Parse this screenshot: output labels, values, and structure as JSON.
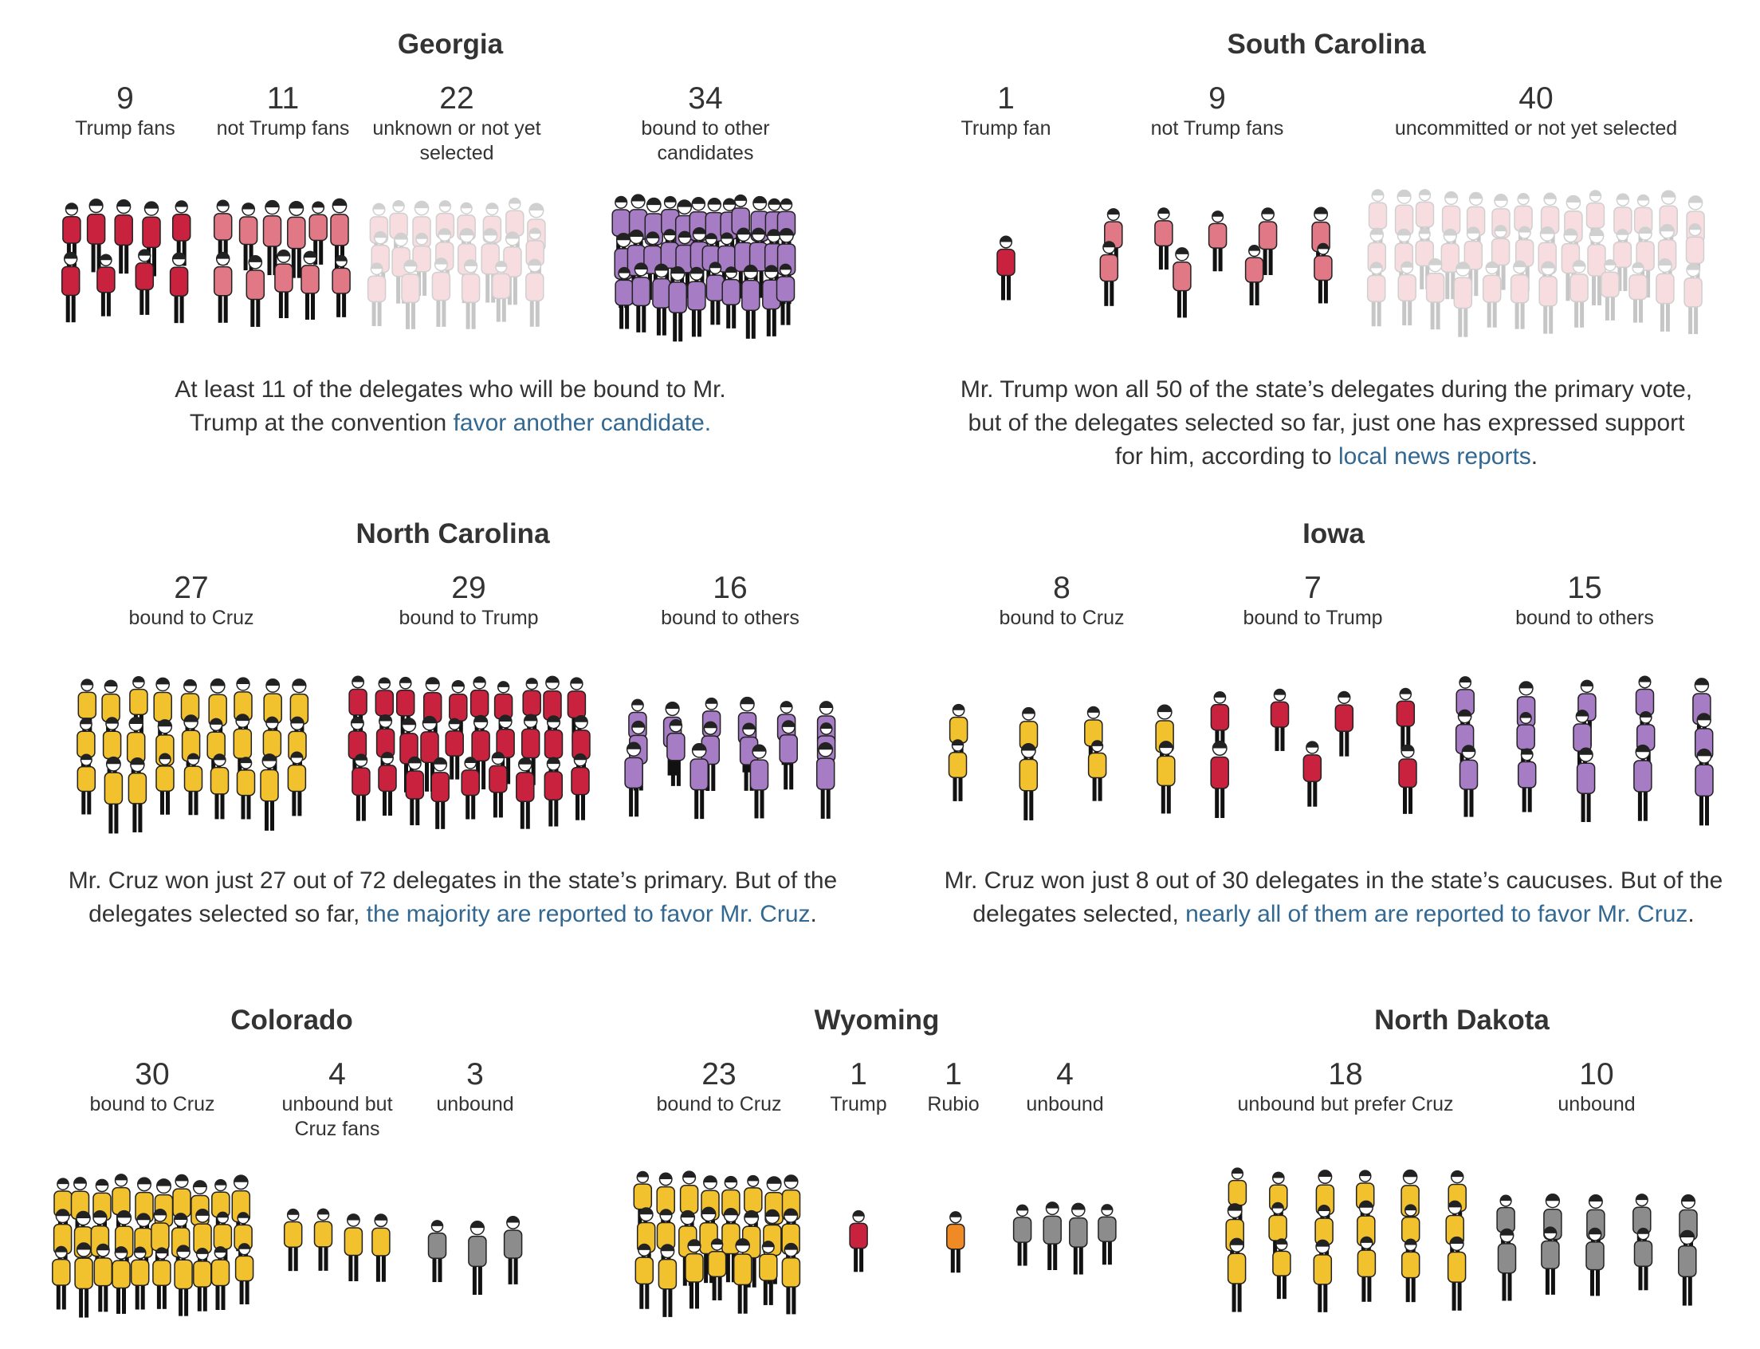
{
  "colors": {
    "trump_fan": "#c8223f",
    "not_trump": "#e07886",
    "unknown": "#f2c1c7",
    "other_candidate": "#a67cc4",
    "cruz": "#f2c12e",
    "trump": "#c8223f",
    "others": "#a67cc4",
    "unbound": "#8c8c8c",
    "rubio": "#f08a24",
    "link": "#326891"
  },
  "states": [
    {
      "id": "georgia",
      "title": "Georgia",
      "groups": [
        {
          "num": "9",
          "label": "Trump fans",
          "count": 9,
          "color": "trump_fan"
        },
        {
          "num": "11",
          "label": "not Trump fans",
          "count": 11,
          "color": "not_trump"
        },
        {
          "num": "22",
          "label": "unknown or not yet\nselected",
          "count": 22,
          "color": "unknown",
          "faded": true
        },
        {
          "num": "34",
          "label": "bound to other\ncandidates",
          "count": 34,
          "color": "other_candidate"
        }
      ],
      "note_before": "At least 11 of the delegates who will be bound to Mr. Trump at the convention ",
      "note_link": "favor another candidate.",
      "note_after": ""
    },
    {
      "id": "south_carolina",
      "title": "South Carolina",
      "groups": [
        {
          "num": "1",
          "label": "Trump fan",
          "count": 1,
          "color": "trump_fan"
        },
        {
          "num": "9",
          "label": "not Trump fans",
          "count": 9,
          "color": "not_trump"
        },
        {
          "num": "40",
          "label": "uncommitted or not yet selected",
          "count": 40,
          "color": "unknown",
          "faded": true
        }
      ],
      "note_before": "Mr. Trump won all 50 of the state’s delegates during the primary vote, but of the delegates selected so far, just one has expressed support for him, according to ",
      "note_link": "local news reports",
      "note_after": "."
    },
    {
      "id": "north_carolina",
      "title": "North Carolina",
      "groups": [
        {
          "num": "27",
          "label": "bound to Cruz",
          "count": 27,
          "color": "cruz"
        },
        {
          "num": "29",
          "label": "bound to Trump",
          "count": 29,
          "color": "trump"
        },
        {
          "num": "16",
          "label": "bound to others",
          "count": 16,
          "color": "others"
        }
      ],
      "note_before": "Mr. Cruz won just 27 out of 72 delegates in the state’s primary. But of the delegates selected so far, ",
      "note_link": "the majority are reported to favor Mr. Cruz",
      "note_after": "."
    },
    {
      "id": "iowa",
      "title": "Iowa",
      "groups": [
        {
          "num": "8",
          "label": "bound to Cruz",
          "count": 8,
          "color": "cruz"
        },
        {
          "num": "7",
          "label": "bound to Trump",
          "count": 7,
          "color": "trump"
        },
        {
          "num": "15",
          "label": "bound to others",
          "count": 15,
          "color": "others"
        }
      ],
      "note_before": "Mr. Cruz won just 8 out of 30 delegates in the state’s caucuses. But of the delegates selected, ",
      "note_link": "nearly all of them are reported to favor Mr. Cruz",
      "note_after": "."
    },
    {
      "id": "colorado",
      "title": "Colorado",
      "groups": [
        {
          "num": "30",
          "label": "bound to Cruz",
          "count": 30,
          "color": "cruz"
        },
        {
          "num": "4",
          "label": "unbound but\nCruz fans",
          "count": 4,
          "color": "cruz"
        },
        {
          "num": "3",
          "label": "unbound",
          "count": 3,
          "color": "unbound"
        }
      ]
    },
    {
      "id": "wyoming",
      "title": "Wyoming",
      "groups": [
        {
          "num": "23",
          "label": "bound to Cruz",
          "count": 23,
          "color": "cruz"
        },
        {
          "num": "1",
          "label": "Trump",
          "count": 1,
          "color": "trump"
        },
        {
          "num": "1",
          "label": "Rubio",
          "count": 1,
          "color": "rubio"
        },
        {
          "num": "4",
          "label": "unbound",
          "count": 4,
          "color": "unbound"
        }
      ]
    },
    {
      "id": "north_dakota",
      "title": "North Dakota",
      "groups": [
        {
          "num": "18",
          "label": "unbound but prefer Cruz",
          "count": 18,
          "color": "cruz"
        },
        {
          "num": "10",
          "label": "unbound",
          "count": 10,
          "color": "unbound"
        }
      ]
    }
  ]
}
